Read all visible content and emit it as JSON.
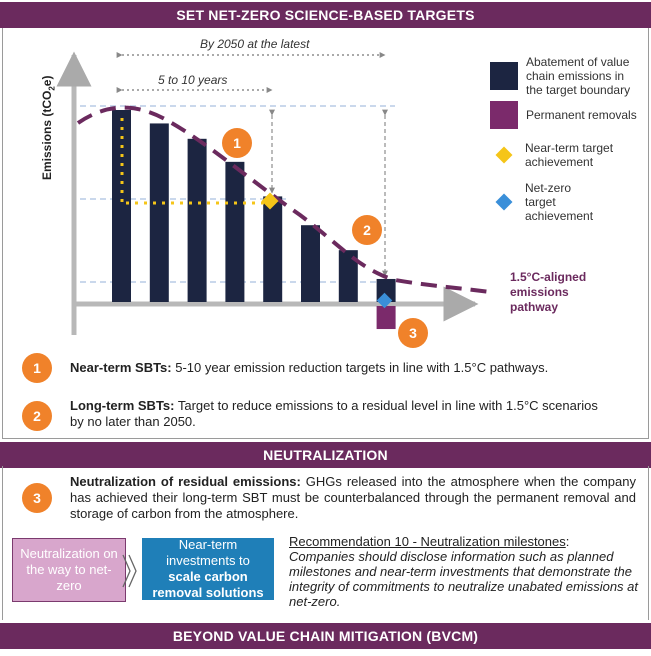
{
  "headers": {
    "targets": "SET NET-ZERO SCIENCE-BASED TARGETS",
    "neutralization": "NEUTRALIZATION",
    "bvcm": "BEYOND VALUE CHAIN MITIGATION (BVCM)"
  },
  "chart": {
    "y_label_main": "Emissions (tCO",
    "y_label_sub": "2",
    "y_label_suffix": "e)",
    "span_long": "By 2050 at the latest",
    "span_short": "5 to 10 years",
    "pathway_label": [
      "1.5°C-aligned",
      "emissions",
      "pathway"
    ],
    "badges": [
      "1",
      "2",
      "3"
    ]
  },
  "chart_data": {
    "type": "bar",
    "bar_values": [
      100,
      93,
      85,
      73,
      55,
      40,
      27,
      12
    ],
    "permanent_removal": 12,
    "pathway": "dashed curve declining from first bar to residual level",
    "near_term_target_bar_index": 4,
    "net_zero_target_bar_index": 7
  },
  "legend": [
    {
      "label": "Abatement of value chain emissions in the target boundary",
      "color": "#1c2541",
      "shape": "square"
    },
    {
      "label": "Permanent removals",
      "color": "#7b2a6b",
      "shape": "square"
    },
    {
      "label": "Near-term target achievement",
      "color": "#f5c518",
      "shape": "diamond"
    },
    {
      "label": "Net-zero target achievement",
      "color": "#3a8fd9",
      "shape": "diamond"
    }
  ],
  "sbts": [
    {
      "badge": "1",
      "title": "Near-term SBTs:",
      "text": " 5-10 year emission reduction targets in line with 1.5°C pathways."
    },
    {
      "badge": "2",
      "title": "Long-term SBTs:",
      "text": " Target to reduce emissions to a residual level in line with 1.5°C scenarios by no later than 2050."
    }
  ],
  "neutralization": {
    "badge": "3",
    "title": "Neutralization of residual emissions:",
    "text": " GHGs released into the atmosphere when the company has achieved their long-term SBT must be counterbalanced through the permanent removal and storage of carbon from the atmosphere.",
    "box_left": "Neutralization on the way to net-zero",
    "box_mid_line1": "Near-term investments to",
    "box_mid_line2": "scale carbon removal solutions",
    "rec_title": "Recommendation 10 - Neutralization milestones",
    "rec_colon": ":",
    "rec_body": "Companies should disclose information such as planned milestones and near-term investments that demonstrate the integrity of commitments to neutralize unabated emissions at net-zero."
  },
  "colors": {
    "header": "#6b2a5e",
    "bar": "#1c2541",
    "removal": "#7b2a6b",
    "badge": "#f0822a",
    "near_term": "#f5c518",
    "net_zero": "#3a8fd9",
    "box_left": "#d8a6cc",
    "box_mid": "#1f7fb8"
  }
}
